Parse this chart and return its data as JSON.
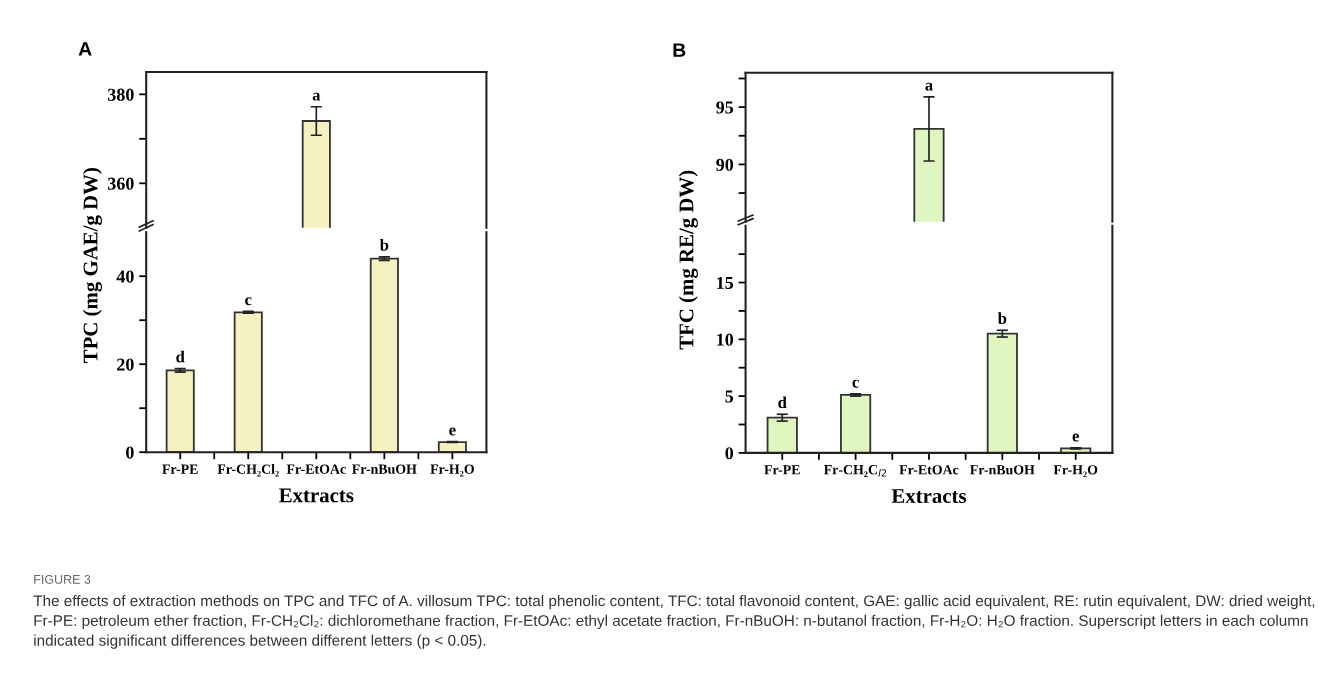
{
  "chart_data": [
    {
      "type": "bar",
      "title": "A",
      "categories": [
        "Fr-PE",
        "Fr-CH₂Cl₂",
        "Fr-EtOAc",
        "Fr-nBuOH",
        "Fr-H₂O"
      ],
      "values": [
        null,
        null,
        374,
        null,
        null
      ],
      "errors": [
        null,
        null,
        3.2,
        null,
        null
      ],
      "colors": [
        "#f5f1c0",
        "#f5f1c0",
        "#f5f1c0",
        "#f5f1c0",
        "#f5f1c0"
      ],
      "ylim": [
        350,
        385
      ],
      "yticks": [
        360,
        {
          "value": 370,
          "label": null
        },
        380
      ],
      "tick_labels": "y",
      "annotations": [
        {
          "text": "a",
          "x": "Fr-EtOAc",
          "y": 377.2
        }
      ]
    },
    {
      "type": "bar",
      "categories": [
        "Fr-PE",
        "Fr-CH₂Cl₂",
        "Fr-EtOAc",
        "Fr-nBuOH",
        "Fr-H₂O"
      ],
      "values": [
        18.6,
        31.8,
        null,
        44,
        2.3
      ],
      "errors": [
        0.4,
        0.2,
        null,
        0.4,
        0.1
      ],
      "colors": [
        "#f5f1c0",
        "#f5f1c0",
        "#f5f1c0",
        "#f5f1c0",
        "#f5f1c0"
      ],
      "ylim": [
        0,
        50
      ],
      "yticks": [
        0,
        {
          "value": 10,
          "label": null
        },
        20,
        {
          "value": 30,
          "label": null
        },
        40
      ],
      "xlabel": "Extracts",
      "ylabel": "TPC (mg GAE/g DW)",
      "annotations": [
        {
          "text": "d",
          "x": "Fr-PE",
          "y": 19
        },
        {
          "text": "c",
          "x": "Fr-CH₂Cl₂",
          "y": 32
        },
        {
          "text": "b",
          "x": "Fr-nBuOH",
          "y": 44.4
        },
        {
          "text": "e",
          "x": "Fr-H₂O",
          "y": 2.4
        }
      ]
    },
    {
      "type": "bar",
      "title": "B",
      "categories": [
        "Fr-PE",
        "Fr-CH₂C$_{l2}$",
        "Fr-EtOAc",
        "Fr-nBuOH",
        "Fr-H₂O"
      ],
      "values": [
        null,
        null,
        93.1,
        null,
        null
      ],
      "errors": [
        null,
        null,
        2.8,
        null,
        null
      ],
      "colors": [
        "#dff6c0",
        "#dff6c0",
        "#dff6c0",
        "#dff6c0",
        "#dff6c0"
      ],
      "ylim": [
        85,
        98
      ],
      "yticks": [
        {
          "value": 87.5,
          "label": null
        },
        90,
        {
          "value": 92.5,
          "label": null
        },
        95,
        {
          "value": 97.5,
          "label": null
        }
      ],
      "tick_labels": "y",
      "annotations": [
        {
          "text": "a",
          "x": "Fr-EtOAc",
          "y": 95.9
        }
      ]
    },
    {
      "type": "bar",
      "categories": [
        "Fr-PE",
        "Fr-CH₂C$_{l2}$",
        "Fr-EtOAc",
        "Fr-nBuOH",
        "Fr-H₂O"
      ],
      "values": [
        3.1,
        5.1,
        null,
        10.5,
        0.4
      ],
      "errors": [
        0.3,
        0.1,
        null,
        0.3,
        0.05
      ],
      "colors": [
        "#dff6c0",
        "#dff6c0",
        "#dff6c0",
        "#dff6c0",
        "#dff6c0"
      ],
      "ylim": [
        0,
        20
      ],
      "yticks": [
        0,
        {
          "value": 2.5,
          "label": null
        },
        5,
        {
          "value": 7.5,
          "label": null
        },
        10,
        {
          "value": 12.5,
          "label": null
        },
        15,
        {
          "value": 17.5,
          "label": null
        }
      ],
      "xlabel": "Extracts",
      "ylabel": "TFC (mg RE/g DW)",
      "annotations": [
        {
          "text": "d",
          "x": "Fr-PE",
          "y": 3.4
        },
        {
          "text": "c",
          "x": "Fr-CH₂C$_{l2}$",
          "y": 5.2
        },
        {
          "text": "b",
          "x": "Fr-nBuOH",
          "y": 10.8
        },
        {
          "text": "e",
          "x": "Fr-H₂O",
          "y": 0.45
        },
        "FIGURE 3",
        "The effects of extraction methods on TPC and TFC of A. villosum TPC: total phenolic content, TFC: total flavonoid content, GAE: gallic acid equivalent, RE: rutin equivalent, DW: dried weight, Fr-PE: petroleum ether fraction, Fr-CH₂Cl₂: dichloromethane fraction, Fr-EtOAc: ethyl acetate fraction, Fr-nBuOH: n-butanol fraction, Fr-H₂O: H₂O fraction. Superscript letters in each column indicated significant differences between different letters (p < 0.05)."
      ]
    }
  ]
}
